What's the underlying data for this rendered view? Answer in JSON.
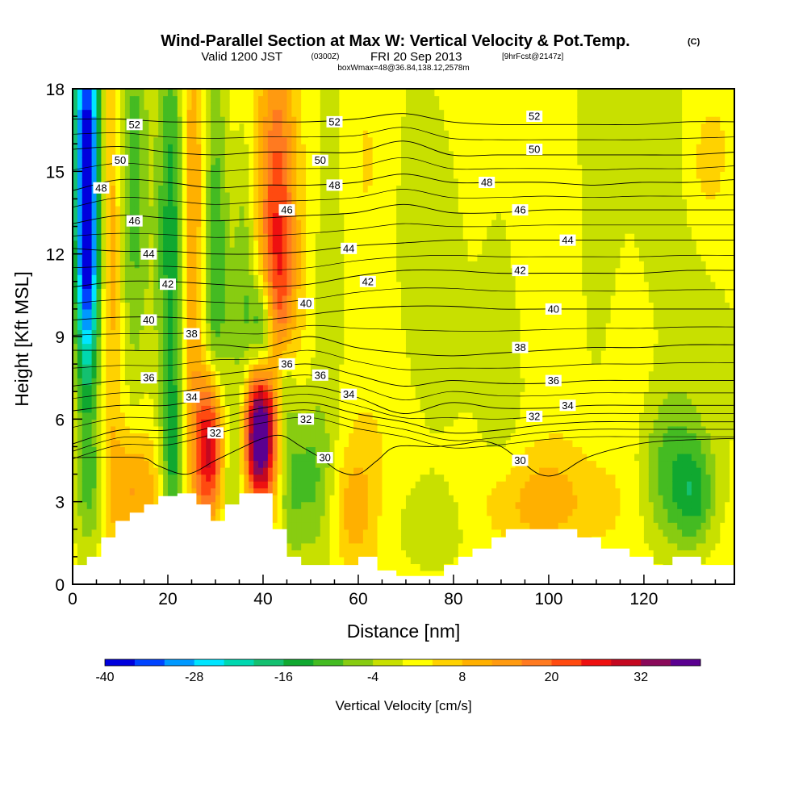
{
  "title": {
    "main": "Wind-Parallel Section at Max W: Vertical Velocity & Pot.Temp.",
    "copyright": "(C)",
    "valid_prefix": "Valid 1200 JST",
    "utc": "(0300Z)",
    "valid_date": "FRI 20 Sep 2013",
    "fcst": "[9hrFcst@2147z]",
    "box": "boxWmax=48@36.84,138.12,2578m"
  },
  "chart_data": {
    "type": "heatmap",
    "xlabel": "Distance [nm]",
    "ylabel": "Height [Kft MSL]",
    "xlim": [
      0,
      139
    ],
    "ylim": [
      0,
      18
    ],
    "x_ticks": [
      0,
      20,
      40,
      60,
      80,
      100,
      120
    ],
    "y_ticks": [
      0,
      3,
      6,
      9,
      12,
      15,
      18
    ],
    "colorbar": {
      "label": "Vertical Velocity [cm/s]",
      "tick_labels": [
        "-40",
        "-28",
        "-16",
        "-4",
        "8",
        "20",
        "32"
      ],
      "levels": [
        -40,
        -36,
        -32,
        -28,
        -24,
        -20,
        -16,
        -12,
        -8,
        -4,
        0,
        4,
        8,
        12,
        16,
        20,
        24,
        28,
        32,
        36,
        40
      ],
      "colors": [
        "#0000dd",
        "#0044ff",
        "#0099ff",
        "#00e5ff",
        "#00d8b0",
        "#14c070",
        "#10a830",
        "#44bb22",
        "#88cc11",
        "#c8e000",
        "#ffff00",
        "#ffd200",
        "#ffb000",
        "#ff9a10",
        "#ff7a20",
        "#ff4a10",
        "#ee1010",
        "#c40820",
        "#8a0a5a",
        "#5a0090"
      ]
    },
    "terrain_kft": [
      [
        0,
        0.7
      ],
      [
        3,
        0.7
      ],
      [
        3,
        1.0
      ],
      [
        6,
        1.0
      ],
      [
        6,
        1.7
      ],
      [
        9,
        1.7
      ],
      [
        9,
        2.3
      ],
      [
        12,
        2.3
      ],
      [
        12,
        2.6
      ],
      [
        15,
        2.6
      ],
      [
        15,
        2.9
      ],
      [
        18,
        2.9
      ],
      [
        18,
        3.2
      ],
      [
        22,
        3.2
      ],
      [
        22,
        3.3
      ],
      [
        26,
        3.3
      ],
      [
        26,
        2.9
      ],
      [
        29,
        2.9
      ],
      [
        29,
        2.3
      ],
      [
        32,
        2.3
      ],
      [
        32,
        2.9
      ],
      [
        35,
        2.9
      ],
      [
        35,
        3.3
      ],
      [
        42,
        3.3
      ],
      [
        42,
        2.0
      ],
      [
        45,
        2.0
      ],
      [
        45,
        1.0
      ],
      [
        48,
        1.0
      ],
      [
        48,
        0.7
      ],
      [
        60,
        0.7
      ],
      [
        60,
        1.0
      ],
      [
        64,
        1.0
      ],
      [
        64,
        0.5
      ],
      [
        68,
        0.5
      ],
      [
        68,
        0.3
      ],
      [
        78,
        0.3
      ],
      [
        78,
        0.7
      ],
      [
        81,
        0.7
      ],
      [
        81,
        1.0
      ],
      [
        84,
        1.0
      ],
      [
        84,
        1.3
      ],
      [
        88,
        1.3
      ],
      [
        88,
        1.7
      ],
      [
        91,
        1.7
      ],
      [
        91,
        2.0
      ],
      [
        106,
        2.0
      ],
      [
        106,
        1.7
      ],
      [
        111,
        1.7
      ],
      [
        111,
        1.3
      ],
      [
        117,
        1.3
      ],
      [
        117,
        1.0
      ],
      [
        122,
        1.0
      ],
      [
        122,
        0.7
      ],
      [
        126,
        0.7
      ],
      [
        126,
        1.0
      ],
      [
        132,
        1.0
      ],
      [
        132,
        0.7
      ],
      [
        139,
        0.7
      ]
    ],
    "features": [
      {
        "x": 3,
        "y": 15.5,
        "sx": 2.0,
        "sy": 6.5,
        "w": -38
      },
      {
        "x": 3,
        "y": 11.5,
        "sx": 1.5,
        "sy": 2.5,
        "w": -12
      },
      {
        "x": 8,
        "y": 14.0,
        "sx": 1.5,
        "sy": 6.0,
        "w": 10
      },
      {
        "x": 13,
        "y": 15.0,
        "sx": 2.0,
        "sy": 6.0,
        "w": -10
      },
      {
        "x": 21,
        "y": 13.0,
        "sx": 2.2,
        "sy": 7.0,
        "w": -16
      },
      {
        "x": 25,
        "y": 12.0,
        "sx": 2.0,
        "sy": 6.0,
        "w": 14
      },
      {
        "x": 30,
        "y": 11.5,
        "sx": 2.0,
        "sy": 7.0,
        "w": -14
      },
      {
        "x": 36,
        "y": 10.0,
        "sx": 1.8,
        "sy": 5.0,
        "w": -10
      },
      {
        "x": 43,
        "y": 11.5,
        "sx": 2.6,
        "sy": 5.5,
        "w": 22
      },
      {
        "x": 40,
        "y": 9.0,
        "sx": 1.8,
        "sy": 1.5,
        "w": -22
      },
      {
        "x": 44,
        "y": 7.5,
        "sx": 1.8,
        "sy": 1.2,
        "w": -12
      },
      {
        "x": 29,
        "y": 5.0,
        "sx": 2.2,
        "sy": 2.0,
        "w": 36
      },
      {
        "x": 39,
        "y": 5.5,
        "sx": 2.3,
        "sy": 1.8,
        "w": 44
      },
      {
        "x": 45,
        "y": 4.5,
        "sx": 2.0,
        "sy": 2.5,
        "w": -12
      },
      {
        "x": 21,
        "y": 4.5,
        "sx": 1.5,
        "sy": 2.0,
        "w": -10
      },
      {
        "x": 33,
        "y": 4.5,
        "sx": 1.5,
        "sy": 1.5,
        "w": -6
      },
      {
        "x": 13,
        "y": 3.5,
        "sx": 4.0,
        "sy": 1.5,
        "w": 10
      },
      {
        "x": 4,
        "y": 3.5,
        "sx": 2.5,
        "sy": 1.5,
        "w": -8
      },
      {
        "x": 50,
        "y": 4.0,
        "sx": 3.0,
        "sy": 2.0,
        "w": -10
      },
      {
        "x": 59,
        "y": 2.8,
        "sx": 3.0,
        "sy": 1.5,
        "w": 8
      },
      {
        "x": 75,
        "y": 2.0,
        "sx": 6.0,
        "sy": 1.3,
        "w": -7
      },
      {
        "x": 98,
        "y": 3.0,
        "sx": 10.0,
        "sy": 1.5,
        "w": 10
      },
      {
        "x": 126,
        "y": 4.0,
        "sx": 5.0,
        "sy": 2.2,
        "w": -14
      },
      {
        "x": 131,
        "y": 3.2,
        "sx": 3.0,
        "sy": 1.3,
        "w": -10
      },
      {
        "x": 110,
        "y": 12.0,
        "sx": 4.0,
        "sy": 6.0,
        "w": -5
      },
      {
        "x": 90,
        "y": 9.0,
        "sx": 3.0,
        "sy": 5.0,
        "w": -4
      },
      {
        "x": 75,
        "y": 12.0,
        "sx": 4.0,
        "sy": 5.0,
        "w": -4
      },
      {
        "x": 54,
        "y": 10.0,
        "sx": 3.0,
        "sy": 5.0,
        "w": -6
      },
      {
        "x": 126,
        "y": 14.0,
        "sx": 5.0,
        "sy": 4.0,
        "w": -4
      },
      {
        "x": 62,
        "y": 16.0,
        "sx": 4.0,
        "sy": 3.0,
        "w": 4
      },
      {
        "x": 132,
        "y": 15.0,
        "sx": 4.0,
        "sy": 2.0,
        "w": 6
      }
    ],
    "theta_contours": [
      {
        "label": "52",
        "y": [
          16.9,
          16.9,
          16.8,
          16.8,
          16.8,
          16.8,
          16.9,
          17.1,
          16.8,
          16.7,
          16.7,
          16.7,
          16.7,
          16.8,
          16.8
        ]
      },
      {
        "label": "50",
        "y": [
          15.8,
          15.9,
          15.7,
          15.6,
          15.7,
          15.7,
          15.7,
          16.1,
          15.6,
          15.6,
          15.6,
          15.6,
          15.6,
          15.6,
          15.7
        ]
      },
      {
        "label": "48",
        "y": [
          14.3,
          14.7,
          14.6,
          14.4,
          14.5,
          14.5,
          14.6,
          14.9,
          14.6,
          14.6,
          14.6,
          14.5,
          14.6,
          14.6,
          14.7
        ]
      },
      {
        "label": "46",
        "y": [
          13.1,
          13.4,
          13.3,
          13.2,
          13.3,
          13.4,
          13.5,
          13.8,
          13.5,
          13.5,
          13.6,
          13.6,
          13.6,
          13.6,
          13.6
        ]
      },
      {
        "label": "44",
        "y": [
          12.2,
          12.1,
          12.1,
          12.0,
          12.0,
          12.1,
          12.3,
          12.4,
          12.5,
          12.5,
          12.5,
          12.5,
          12.5,
          12.5,
          12.5
        ]
      },
      {
        "label": "42",
        "y": [
          10.8,
          11.0,
          11.0,
          10.9,
          10.8,
          10.9,
          11.2,
          11.4,
          11.4,
          11.3,
          11.3,
          11.3,
          11.3,
          11.4,
          11.4
        ]
      },
      {
        "label": "40",
        "y": [
          9.6,
          9.7,
          9.7,
          9.6,
          9.6,
          9.8,
          10.0,
          10.1,
          10.1,
          10.0,
          10.0,
          10.0,
          10.0,
          10.0,
          10.0
        ]
      },
      {
        "label": "38",
        "y": [
          8.5,
          8.5,
          8.5,
          8.7,
          8.6,
          9.0,
          8.6,
          8.4,
          8.3,
          8.4,
          8.5,
          8.6,
          8.6,
          8.7,
          8.7
        ]
      },
      {
        "label": "36",
        "y": [
          7.2,
          7.4,
          7.4,
          7.6,
          7.8,
          8.0,
          7.6,
          7.2,
          7.4,
          7.3,
          7.3,
          7.4,
          7.4,
          7.4,
          7.4
        ]
      },
      {
        "label": "34",
        "y": [
          6.3,
          6.5,
          6.5,
          6.8,
          7.0,
          7.2,
          6.8,
          6.2,
          6.6,
          6.4,
          6.4,
          6.5,
          6.5,
          6.5,
          6.5
        ]
      },
      {
        "label": "32",
        "y": [
          5.1,
          5.6,
          5.6,
          6.0,
          6.4,
          6.6,
          6.2,
          5.9,
          5.5,
          5.6,
          5.8,
          5.9,
          5.9,
          5.9,
          5.9
        ]
      }
    ],
    "theta_label_positions": [
      {
        "label": "52",
        "pos": [
          [
            13,
            16.7
          ],
          [
            55,
            16.8
          ],
          [
            97,
            17.0
          ]
        ]
      },
      {
        "label": "50",
        "pos": [
          [
            10,
            15.4
          ],
          [
            52,
            15.4
          ],
          [
            97,
            15.8
          ]
        ]
      },
      {
        "label": "48",
        "pos": [
          [
            6,
            14.4
          ],
          [
            55,
            14.5
          ],
          [
            87,
            14.6
          ]
        ]
      },
      {
        "label": "46",
        "pos": [
          [
            13,
            13.2
          ],
          [
            45,
            13.6
          ],
          [
            94,
            13.6
          ]
        ]
      },
      {
        "label": "44",
        "pos": [
          [
            16,
            12.0
          ],
          [
            58,
            12.2
          ],
          [
            104,
            12.5
          ]
        ]
      },
      {
        "label": "42",
        "pos": [
          [
            20,
            10.9
          ],
          [
            62,
            11.0
          ],
          [
            94,
            11.4
          ]
        ]
      },
      {
        "label": "40",
        "pos": [
          [
            16,
            9.6
          ],
          [
            49,
            10.2
          ],
          [
            101,
            10.0
          ]
        ]
      },
      {
        "label": "38",
        "pos": [
          [
            25,
            9.1
          ],
          [
            94,
            8.6
          ]
        ]
      },
      {
        "label": "36",
        "pos": [
          [
            16,
            7.5
          ],
          [
            45,
            8.0
          ],
          [
            52,
            7.6
          ],
          [
            101,
            7.4
          ]
        ]
      },
      {
        "label": "34",
        "pos": [
          [
            25,
            6.8
          ],
          [
            58,
            6.9
          ],
          [
            104,
            6.5
          ]
        ]
      },
      {
        "label": "32",
        "pos": [
          [
            30,
            5.5
          ],
          [
            49,
            6.0
          ],
          [
            97,
            6.1
          ]
        ]
      },
      {
        "label": "30",
        "pos": [
          [
            53,
            4.6
          ],
          [
            94,
            4.5
          ]
        ]
      }
    ],
    "theta30": [
      [
        0,
        4.6
      ],
      [
        14,
        4.6
      ],
      [
        18,
        4.3
      ],
      [
        24,
        4.0
      ],
      [
        30,
        4.5
      ],
      [
        36,
        5.0
      ],
      [
        40,
        5.3
      ],
      [
        44,
        5.4
      ],
      [
        48,
        5.0
      ],
      [
        52,
        4.6
      ],
      [
        56,
        4.1
      ],
      [
        60,
        4.0
      ],
      [
        64,
        4.5
      ],
      [
        68,
        5.0
      ],
      [
        76,
        5.0
      ],
      [
        82,
        5.1
      ],
      [
        86,
        5.2
      ],
      [
        90,
        5.0
      ],
      [
        94,
        4.5
      ],
      [
        98,
        4.0
      ],
      [
        102,
        4.0
      ],
      [
        108,
        4.6
      ],
      [
        116,
        5.0
      ],
      [
        124,
        5.2
      ],
      [
        139,
        5.3
      ]
    ]
  },
  "chart_texts": {
    "xlabel": "Distance [nm]",
    "ylabel": "Height [Kft MSL]",
    "cbar_label": "Vertical Velocity [cm/s]"
  }
}
